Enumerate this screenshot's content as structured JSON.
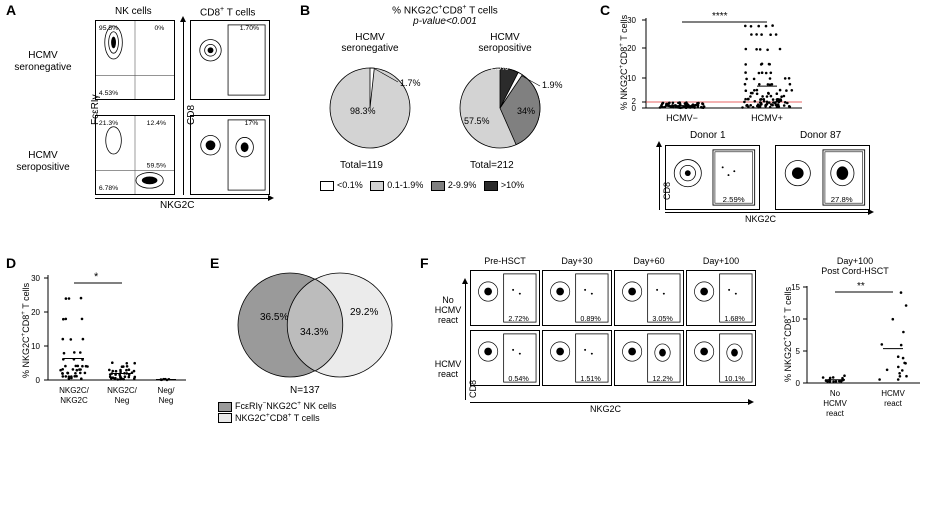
{
  "panelA": {
    "label": "A",
    "col_headers": [
      "NK cells",
      "CD8⁺ T cells"
    ],
    "row_labels": [
      "HCMV\nseronegative",
      "HCMV\nseropositive"
    ],
    "y_axis": "FcεRIγ",
    "y_axis2": "CD8",
    "x_axis": "NKG2C",
    "plots": [
      {
        "q_ul": "95.5%",
        "q_ur": "0%",
        "q_ll": "4.53%",
        "q_lr": ""
      },
      {
        "q_ur": "1.70%"
      },
      {
        "q_ul": "21.3%",
        "q_ur": "12.4%",
        "q_ll": "6.78%",
        "q_lr": "59.5%"
      },
      {
        "q_ur": "17%"
      }
    ]
  },
  "panelB": {
    "label": "B",
    "title_line1": "% NKG2C⁺CD8⁺ T cells",
    "title_line2": "p-value<0.001",
    "pie1_title": "HCMV\nseronegative",
    "pie2_title": "HCMV\nseropositive",
    "pie1": {
      "lt01": 1.7,
      "p01_19": 98.3,
      "label_lt01": "1.7%",
      "label_01_19": "98.3%",
      "total": "Total=119"
    },
    "pie2": {
      "lt01": 1.9,
      "p01_19": 57.5,
      "p2_99": 34,
      "p10": 7.5,
      "label_lt01": "1.9%",
      "label_01_19": "57.5%",
      "label_2_99": "34%",
      "label_10": "7.5%",
      "total": "Total=212"
    },
    "legend": [
      {
        "sw": "white",
        "txt": "<0.1%"
      },
      {
        "sw": "lgray",
        "txt": "0.1-1.9%"
      },
      {
        "sw": "dgray",
        "txt": "2-9.9%"
      },
      {
        "sw": "black",
        "txt": ">10%"
      }
    ],
    "colors": {
      "white": "#ffffff",
      "lgray": "#d3d3d3",
      "dgray": "#808080",
      "black": "#2b2b2b"
    }
  },
  "panelC": {
    "label": "C",
    "ylabel": "% NKG2C⁺CD8⁺ T cells",
    "sig": "****",
    "groups": [
      "HCMV−",
      "HCMV+"
    ],
    "ylim": [
      0,
      30
    ],
    "yticks": [
      0,
      2,
      10,
      20,
      30
    ],
    "redline_y": 2,
    "donors": [
      {
        "name": "Donor 1",
        "pct": "2.59%"
      },
      {
        "name": "Donor 87",
        "pct": "27.8%"
      }
    ],
    "x_axis": "NKG2C",
    "y_axis": "CD8"
  },
  "panelD": {
    "label": "D",
    "ylabel": "% NKG2C⁺CD8⁺ T cells",
    "sig": "*",
    "groups": [
      "NKG2C/\nNKG2C",
      "NKG2C/\nNeg",
      "Neg/\nNeg"
    ],
    "ylim": [
      0,
      30
    ],
    "yticks": [
      0,
      10,
      20,
      30
    ]
  },
  "panelE": {
    "label": "E",
    "left_pct": "36.5%",
    "mid_pct": "34.3%",
    "right_pct": "29.2%",
    "N": "N=137",
    "legend_left": "FcεRIγ⁻NKG2C⁺ NK cells",
    "legend_right": "NKG2C⁺CD8⁺ T cells",
    "left_color": "#9a9a9a",
    "right_color": "#e8e8e8",
    "mid_color": "#bcbcbc"
  },
  "panelF": {
    "label": "F",
    "col_headers": [
      "Pre-HSCT",
      "Day+30",
      "Day+60",
      "Day+100"
    ],
    "row_labels": [
      "No\nHCMV\nreact",
      "HCMV\nreact"
    ],
    "y_axis": "CD8",
    "x_axis": "NKG2C",
    "values": [
      [
        "2.72%",
        "0.89%",
        "3.05%",
        "1.68%"
      ],
      [
        "0.54%",
        "1.51%",
        "12.2%",
        "10.1%"
      ]
    ],
    "right": {
      "title": "Day+100\nPost Cord-HSCT",
      "sig": "**",
      "ylabel": "% NKG2C⁺CD8⁺ T cells",
      "groups": [
        "No\nHCMV\nreact",
        "HCMV\nreact"
      ],
      "ylim": [
        0,
        15
      ],
      "yticks": [
        0,
        5,
        10,
        15
      ]
    }
  }
}
